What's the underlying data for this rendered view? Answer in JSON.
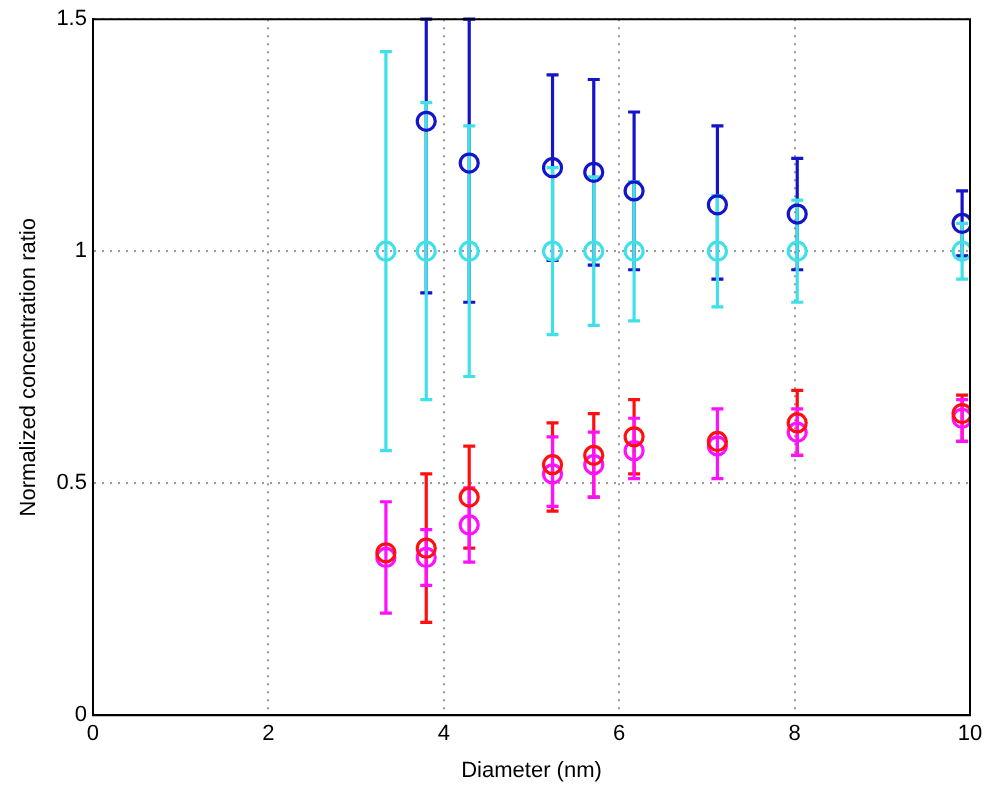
{
  "chart_data": {
    "type": "scatter",
    "xlabel": "Diameter (nm)",
    "ylabel": "Normalized concentration ratio",
    "x": [
      3.34,
      3.8,
      4.29,
      5.24,
      5.71,
      6.17,
      7.12,
      8.03,
      9.91
    ],
    "series": [
      {
        "color": "#1414c8",
        "values": [
          null,
          1.28,
          1.19,
          1.18,
          1.17,
          1.13,
          1.1,
          1.08,
          1.06
        ],
        "errors": [
          null,
          [
            0.91,
            1.5
          ],
          [
            0.89,
            1.5
          ],
          [
            0.98,
            1.38
          ],
          [
            0.97,
            1.37
          ],
          [
            0.96,
            1.3
          ],
          [
            0.94,
            1.27
          ],
          [
            0.96,
            1.2
          ],
          [
            0.99,
            1.13
          ]
        ]
      },
      {
        "color": "#40e0e8",
        "values": [
          1,
          1,
          1,
          1,
          1,
          1,
          1,
          1,
          1
        ],
        "errors": [
          [
            0.57,
            1.43
          ],
          [
            0.68,
            1.32
          ],
          [
            0.73,
            1.27
          ],
          [
            0.82,
            1.18
          ],
          [
            0.84,
            1.16
          ],
          [
            0.85,
            1.15
          ],
          [
            0.88,
            1.12
          ],
          [
            0.89,
            1.11
          ],
          [
            0.94,
            1.06
          ]
        ]
      },
      {
        "color": "#ff1010",
        "values": [
          0.35,
          0.36,
          0.47,
          0.54,
          0.56,
          0.6,
          0.59,
          0.63,
          0.65
        ],
        "errors": [
          null,
          [
            0.2,
            0.52
          ],
          [
            0.36,
            0.58
          ],
          [
            0.44,
            0.63
          ],
          [
            0.47,
            0.65
          ],
          [
            0.52,
            0.68
          ],
          null,
          [
            0.56,
            0.7
          ],
          [
            0.59,
            0.69
          ]
        ]
      },
      {
        "color": "#ff10ff",
        "values": [
          0.34,
          0.34,
          0.41,
          0.52,
          0.54,
          0.57,
          0.58,
          0.61,
          0.64
        ],
        "errors": [
          [
            0.22,
            0.46
          ],
          [
            0.28,
            0.4
          ],
          [
            0.33,
            0.49
          ],
          [
            0.45,
            0.6
          ],
          [
            0.47,
            0.61
          ],
          [
            0.51,
            0.64
          ],
          [
            0.51,
            0.66
          ],
          [
            0.56,
            0.66
          ],
          [
            0.59,
            0.68
          ]
        ]
      }
    ],
    "xlim": [
      0,
      10
    ],
    "xticks": [
      0,
      2,
      4,
      6,
      8,
      10
    ],
    "ylim": [
      0,
      1.5
    ],
    "yticks": [
      0,
      0.5,
      1,
      1.5
    ],
    "grid": true,
    "legend": false,
    "marker": "circle"
  }
}
